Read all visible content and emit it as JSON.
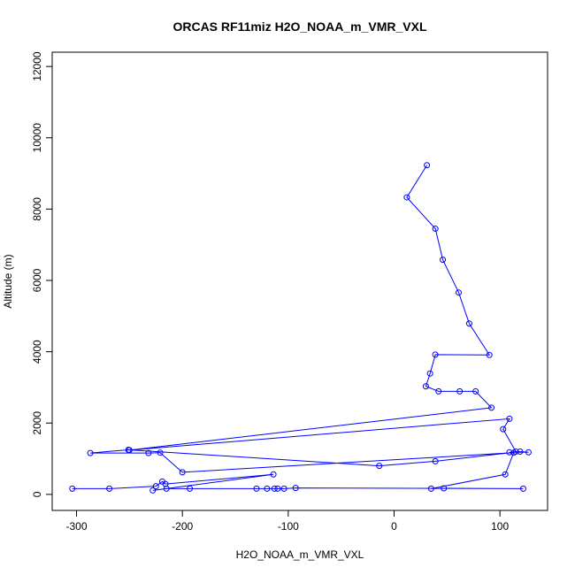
{
  "chart_data": {
    "type": "line",
    "title": "ORCAS RF11miz H2O_NOAA_m_VMR_VXL",
    "xlabel": "H2O_NOAA_m_VMR_VXL",
    "ylabel": "Altitude (m)",
    "xlim": [
      -323,
      145
    ],
    "ylim": [
      -450,
      12400
    ],
    "xticks": [
      -300,
      -200,
      -100,
      0,
      100
    ],
    "yticks": [
      0,
      2000,
      4000,
      6000,
      8000,
      10000,
      12000
    ],
    "marker": "open-circle",
    "grid": false,
    "colors": {
      "series": "#0000ff",
      "axes": "#000000"
    },
    "series": [
      {
        "points": [
          [
            -304,
            160
          ],
          [
            -269,
            160
          ],
          [
            -225,
            230
          ],
          [
            -219,
            360
          ],
          [
            -216,
            290
          ],
          [
            -114,
            560
          ],
          [
            -228,
            110
          ],
          [
            -215,
            160
          ],
          [
            -193,
            160
          ],
          [
            -130,
            160
          ],
          [
            -120,
            160
          ],
          [
            -113,
            160
          ],
          [
            -110,
            160
          ],
          [
            -104,
            160
          ],
          [
            -93,
            180
          ],
          [
            122,
            160
          ],
          [
            47,
            170
          ],
          [
            35,
            160
          ],
          [
            105,
            560
          ],
          [
            113,
            1170
          ],
          [
            -200,
            620
          ],
          [
            -221,
            1170
          ],
          [
            -232,
            1160
          ],
          [
            -287,
            1160
          ],
          [
            -251,
            1250
          ],
          [
            -14,
            800
          ],
          [
            39,
            930
          ],
          [
            119,
            1200
          ],
          [
            127,
            1180
          ],
          [
            109,
            1180
          ],
          [
            115,
            1200
          ],
          [
            103,
            1830
          ],
          [
            109,
            2120
          ],
          [
            -250,
            1240
          ],
          [
            92,
            2430
          ],
          [
            77,
            2890
          ],
          [
            62,
            2890
          ],
          [
            42,
            2890
          ],
          [
            30,
            3030
          ],
          [
            34,
            3390
          ],
          [
            39,
            3920
          ],
          [
            90,
            3910
          ],
          [
            71,
            4790
          ],
          [
            61,
            5660
          ],
          [
            46,
            6580
          ],
          [
            39,
            7450
          ],
          [
            12,
            8330
          ],
          [
            31,
            9230
          ]
        ]
      }
    ]
  }
}
